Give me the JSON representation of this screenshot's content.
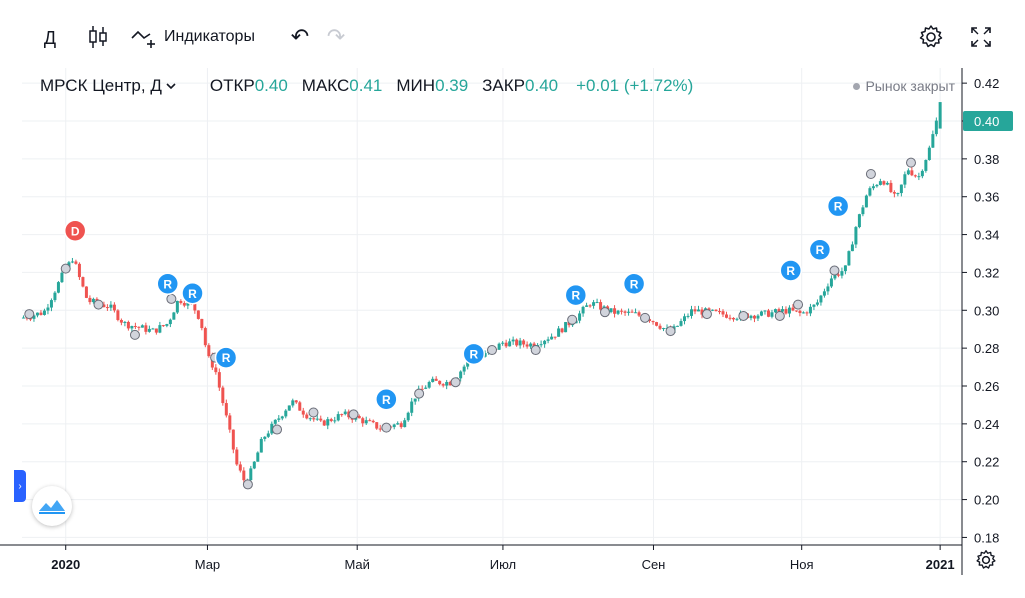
{
  "toolbar": {
    "interval": "Д",
    "indicators_label": "Индикаторы"
  },
  "legend": {
    "symbol": "МРСК Центр, Д",
    "open_label": "ОТКР",
    "open_value": "0.40",
    "high_label": "МАКС",
    "high_value": "0.41",
    "low_label": "МИН",
    "low_value": "0.39",
    "close_label": "ЗАКР",
    "close_value": "0.40",
    "change": "+0.01 (+1.72%)"
  },
  "status": "Рынок закрыт",
  "colors": {
    "up": "#26a69a",
    "down": "#ef5350",
    "grid": "#eef0f3",
    "axis": "#131722",
    "marker_blue": "#2196f3",
    "marker_red": "#ef5350",
    "accent": "#2962ff"
  },
  "chart_data": {
    "type": "bar",
    "title": "МРСК Центр, Д",
    "ylim": [
      0.176,
      0.428
    ],
    "y_ticks": [
      "0.42",
      "0.40",
      "0.38",
      "0.36",
      "0.34",
      "0.32",
      "0.30",
      "0.28",
      "0.26",
      "0.24",
      "0.22",
      "0.20",
      "0.18"
    ],
    "x_ticks": [
      {
        "label": "2020",
        "t": 0.0
      },
      {
        "label": "Мар",
        "t": 1.945
      },
      {
        "label": "Май",
        "t": 4.0
      },
      {
        "label": "Июл",
        "t": 6.0
      },
      {
        "label": "Сен",
        "t": 8.066
      },
      {
        "label": "Ноя",
        "t": 10.1
      },
      {
        "label": "2021",
        "t": 12.0
      }
    ],
    "x_range": [
      -0.6,
      12.3
    ],
    "last_price": "0.40",
    "anchors": [
      [
        -0.6,
        0.296
      ],
      [
        -0.3,
        0.299
      ],
      [
        -0.05,
        0.318
      ],
      [
        0.1,
        0.328
      ],
      [
        0.18,
        0.318
      ],
      [
        0.3,
        0.305
      ],
      [
        0.6,
        0.302
      ],
      [
        0.8,
        0.293
      ],
      [
        1.2,
        0.289
      ],
      [
        1.4,
        0.293
      ],
      [
        1.55,
        0.306
      ],
      [
        1.75,
        0.302
      ],
      [
        1.85,
        0.295
      ],
      [
        1.95,
        0.275
      ],
      [
        2.05,
        0.269
      ],
      [
        2.2,
        0.244
      ],
      [
        2.35,
        0.218
      ],
      [
        2.45,
        0.21
      ],
      [
        2.55,
        0.215
      ],
      [
        2.7,
        0.232
      ],
      [
        2.9,
        0.242
      ],
      [
        3.1,
        0.252
      ],
      [
        3.3,
        0.245
      ],
      [
        3.5,
        0.24
      ],
      [
        3.8,
        0.245
      ],
      [
        4.0,
        0.243
      ],
      [
        4.3,
        0.238
      ],
      [
        4.6,
        0.24
      ],
      [
        4.8,
        0.255
      ],
      [
        5.0,
        0.262
      ],
      [
        5.3,
        0.262
      ],
      [
        5.5,
        0.272
      ],
      [
        5.8,
        0.277
      ],
      [
        6.0,
        0.283
      ],
      [
        6.4,
        0.282
      ],
      [
        6.7,
        0.287
      ],
      [
        7.0,
        0.296
      ],
      [
        7.2,
        0.304
      ],
      [
        7.5,
        0.299
      ],
      [
        7.8,
        0.298
      ],
      [
        8.0,
        0.296
      ],
      [
        8.3,
        0.288
      ],
      [
        8.6,
        0.3
      ],
      [
        8.8,
        0.299
      ],
      [
        9.2,
        0.297
      ],
      [
        9.6,
        0.298
      ],
      [
        9.9,
        0.3
      ],
      [
        10.1,
        0.298
      ],
      [
        10.3,
        0.303
      ],
      [
        10.5,
        0.317
      ],
      [
        10.7,
        0.322
      ],
      [
        10.85,
        0.345
      ],
      [
        11.0,
        0.362
      ],
      [
        11.2,
        0.37
      ],
      [
        11.4,
        0.358
      ],
      [
        11.55,
        0.375
      ],
      [
        11.7,
        0.37
      ],
      [
        11.85,
        0.385
      ],
      [
        11.95,
        0.4
      ]
    ],
    "circle_markers": [
      [
        -0.5,
        0.298
      ],
      [
        0.0,
        0.322
      ],
      [
        0.45,
        0.303
      ],
      [
        0.95,
        0.287
      ],
      [
        1.45,
        0.306
      ],
      [
        2.05,
        0.275
      ],
      [
        2.5,
        0.208
      ],
      [
        2.9,
        0.237
      ],
      [
        3.4,
        0.246
      ],
      [
        3.95,
        0.245
      ],
      [
        4.4,
        0.238
      ],
      [
        4.85,
        0.256
      ],
      [
        5.35,
        0.262
      ],
      [
        5.85,
        0.279
      ],
      [
        6.45,
        0.279
      ],
      [
        6.95,
        0.295
      ],
      [
        7.4,
        0.299
      ],
      [
        7.95,
        0.296
      ],
      [
        8.3,
        0.289
      ],
      [
        8.8,
        0.298
      ],
      [
        9.3,
        0.297
      ],
      [
        9.8,
        0.297
      ],
      [
        10.05,
        0.303
      ],
      [
        10.55,
        0.321
      ],
      [
        11.05,
        0.372
      ],
      [
        11.6,
        0.378
      ]
    ],
    "letter_markers": [
      {
        "letter": "D",
        "t": 0.13,
        "v": 0.342,
        "kind": "dividend"
      },
      {
        "letter": "R",
        "t": 1.4,
        "v": 0.314,
        "kind": "report"
      },
      {
        "letter": "R",
        "t": 1.74,
        "v": 0.309,
        "kind": "report"
      },
      {
        "letter": "R",
        "t": 2.2,
        "v": 0.275,
        "kind": "report"
      },
      {
        "letter": "R",
        "t": 4.4,
        "v": 0.253,
        "kind": "report"
      },
      {
        "letter": "R",
        "t": 5.6,
        "v": 0.277,
        "kind": "report"
      },
      {
        "letter": "R",
        "t": 7.0,
        "v": 0.308,
        "kind": "report"
      },
      {
        "letter": "R",
        "t": 7.8,
        "v": 0.314,
        "kind": "report"
      },
      {
        "letter": "R",
        "t": 9.95,
        "v": 0.321,
        "kind": "report"
      },
      {
        "letter": "R",
        "t": 10.35,
        "v": 0.332,
        "kind": "report"
      },
      {
        "letter": "R",
        "t": 10.6,
        "v": 0.355,
        "kind": "report"
      }
    ]
  }
}
